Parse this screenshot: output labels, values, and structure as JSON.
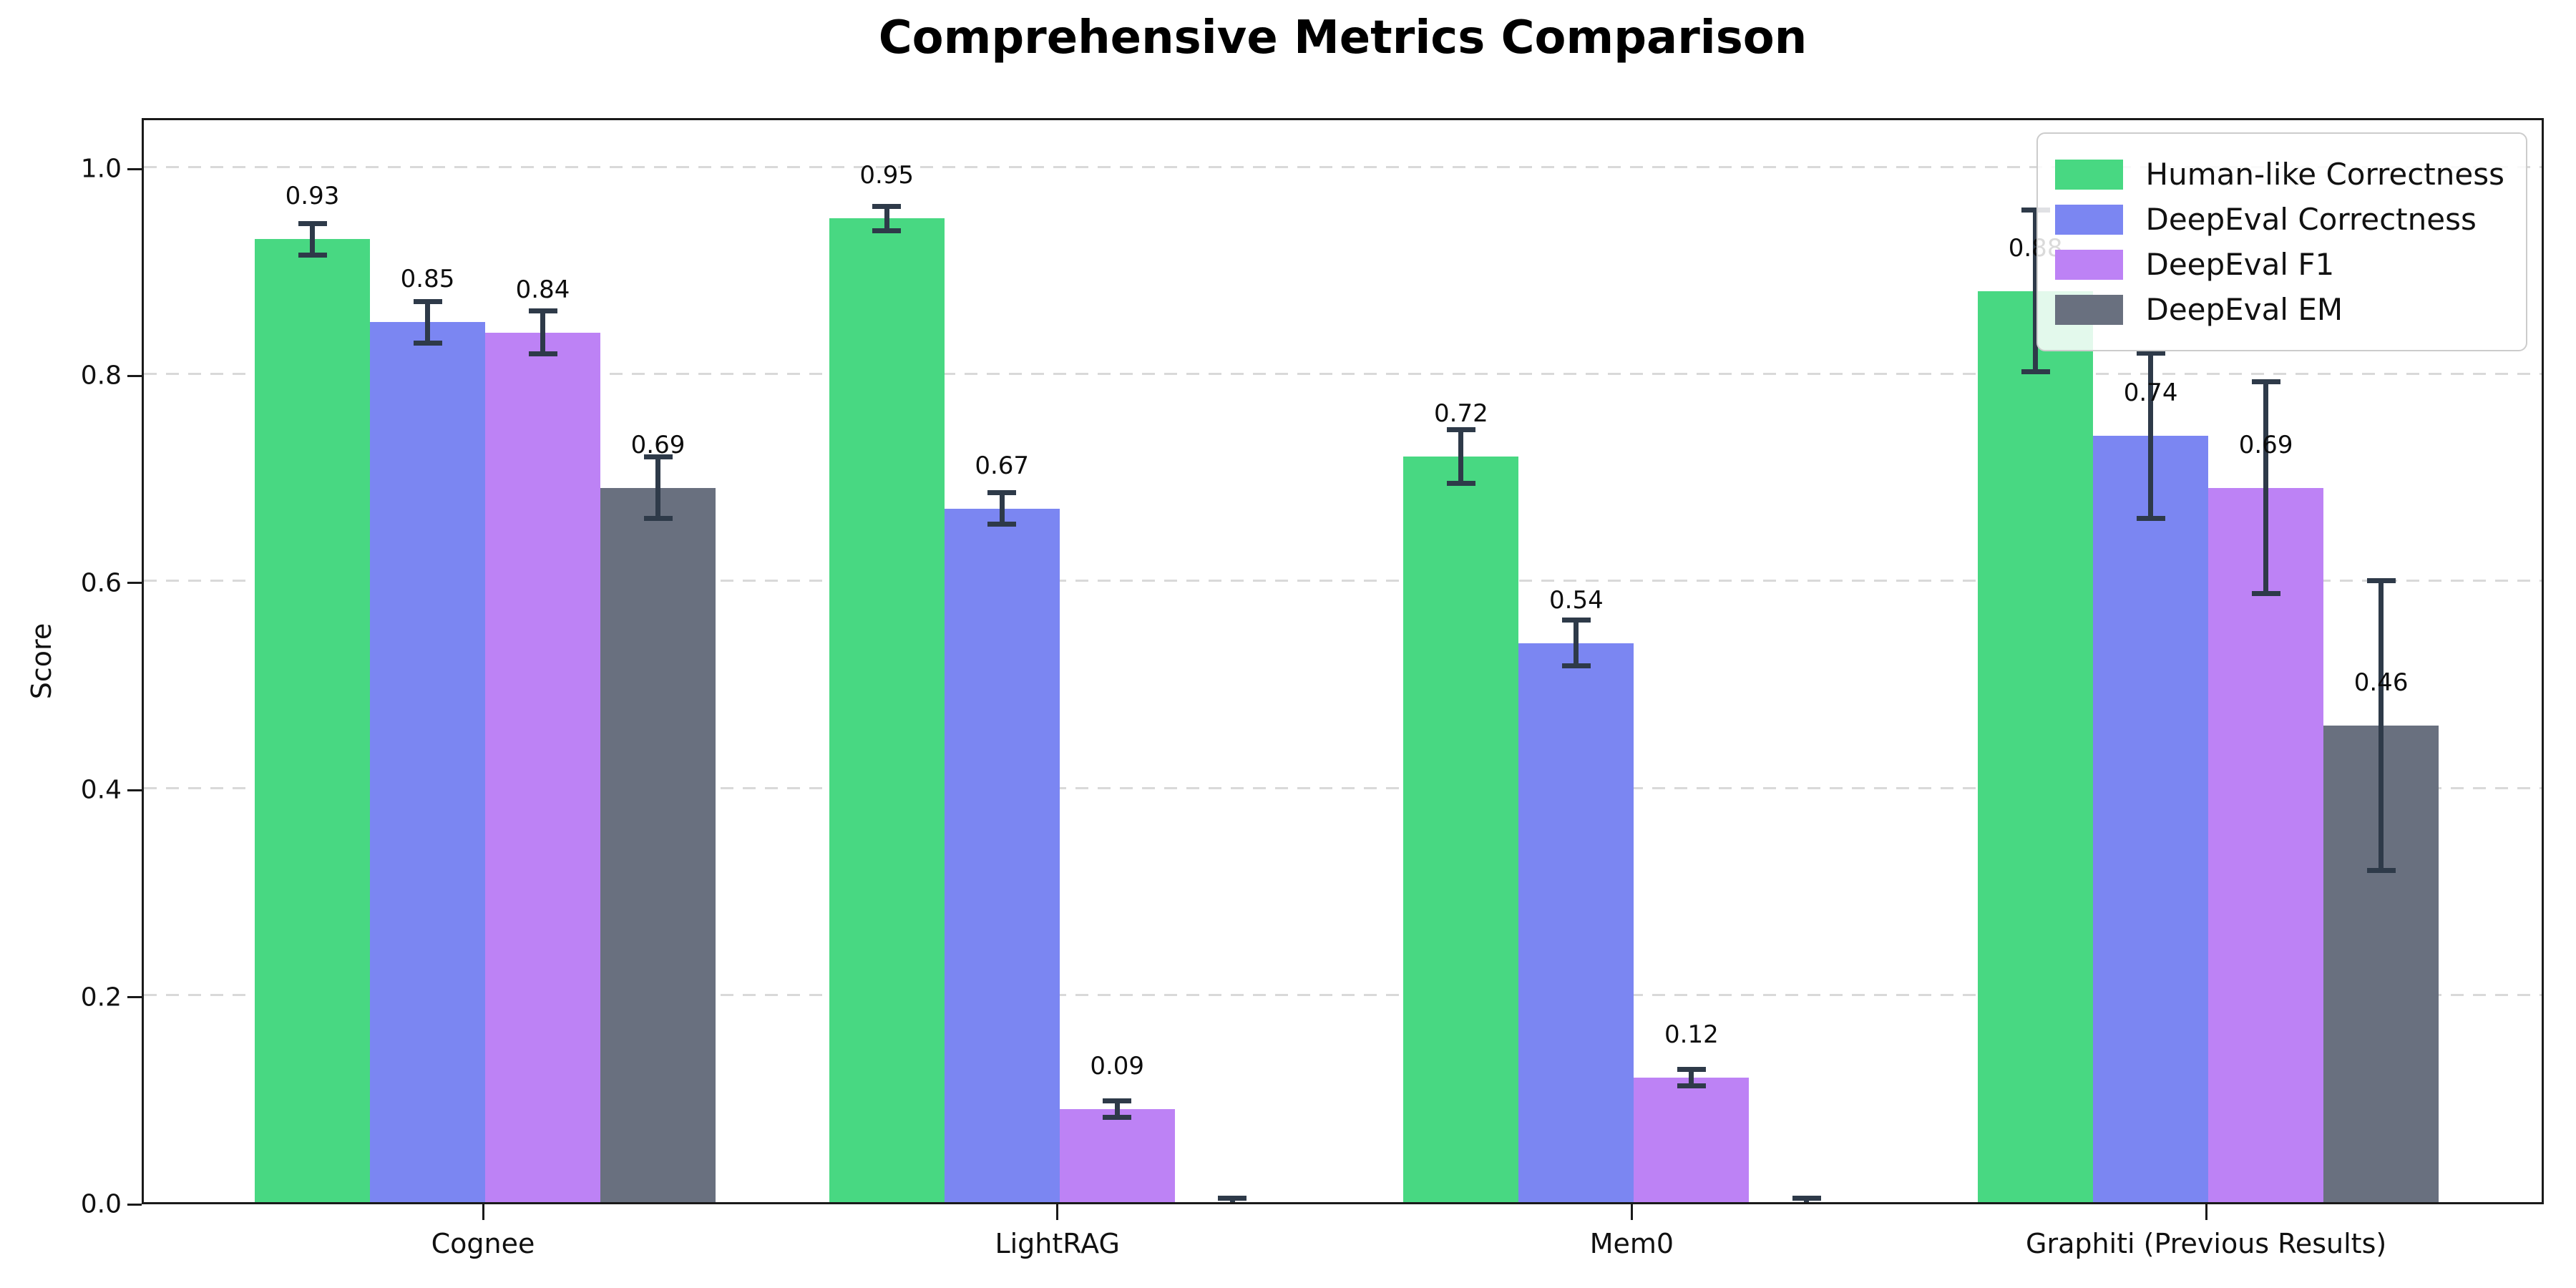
{
  "chart_data": {
    "type": "bar",
    "title": "Comprehensive Metrics Comparison",
    "xlabel": "",
    "ylabel": "Score",
    "categories": [
      "Cognee",
      "LightRAG",
      "Mem0",
      "Graphiti (Previous Results)"
    ],
    "series": [
      {
        "name": "Human-like Correctness",
        "color": "#48d882",
        "values": [
          0.93,
          0.95,
          0.72,
          0.88
        ],
        "errors": [
          0.015,
          0.012,
          0.026,
          0.078
        ],
        "labels": [
          "0.93",
          "0.95",
          "0.72",
          "0.88"
        ]
      },
      {
        "name": "DeepEval Correctness",
        "color": "#7b86f2",
        "values": [
          0.85,
          0.67,
          0.54,
          0.74
        ],
        "errors": [
          0.02,
          0.015,
          0.022,
          0.08
        ],
        "labels": [
          "0.85",
          "0.67",
          "0.54",
          "0.74"
        ]
      },
      {
        "name": "DeepEval F1",
        "color": "#bd82f5",
        "values": [
          0.84,
          0.09,
          0.12,
          0.69
        ],
        "errors": [
          0.021,
          0.008,
          0.008,
          0.102
        ],
        "labels": [
          "0.84",
          "0.09",
          "0.12",
          "0.69"
        ]
      },
      {
        "name": "DeepEval EM",
        "color": "#69707f",
        "values": [
          0.69,
          0.0,
          0.0,
          0.46
        ],
        "errors": [
          0.03,
          0.004,
          0.004,
          0.14
        ],
        "labels": [
          "0.69",
          "",
          "",
          "0.46"
        ]
      }
    ],
    "ytick_labels": [
      "0.0",
      "0.2",
      "0.4",
      "0.6",
      "0.8",
      "1.0"
    ],
    "yticks": [
      0.0,
      0.2,
      0.4,
      0.6,
      0.8,
      1.0
    ],
    "ylim": [
      0.0,
      1.05
    ],
    "grid": "horizontal-dashed",
    "legend_position": "upper-right"
  },
  "colors": {
    "error_bar": "#2e3a49",
    "grid": "#d9d9d9",
    "spine": "#1a1a1a",
    "background": "#ffffff",
    "legend_border": "#cccccc"
  }
}
